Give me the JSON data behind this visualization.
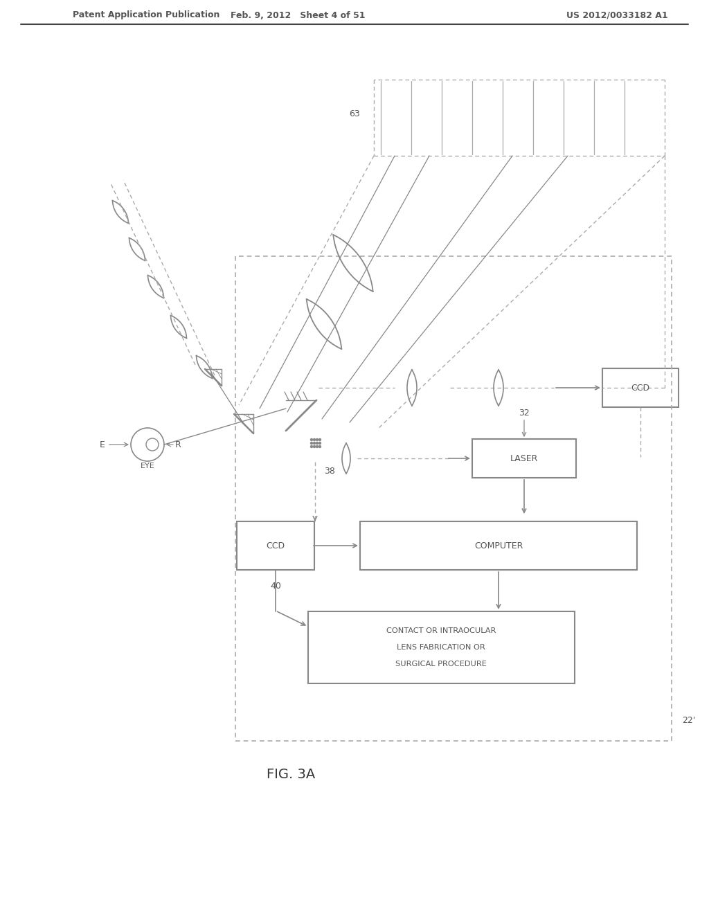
{
  "background_color": "#ffffff",
  "header_left": "Patent Application Publication",
  "header_center": "Feb. 9, 2012   Sheet 4 of 51",
  "header_right": "US 2012/0033182 A1",
  "figure_label": "FIG. 3A",
  "line_color": "#888888",
  "text_color": "#555555",
  "dashed_color": "#aaaaaa"
}
